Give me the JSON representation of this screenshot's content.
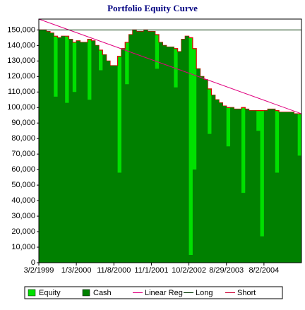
{
  "chart_data": {
    "type": "area",
    "title": "Portfolio Equity Curve",
    "categories": [
      "3/2/1999",
      null,
      null,
      null,
      null,
      null,
      null,
      null,
      null,
      null,
      "1/3/2000",
      null,
      null,
      null,
      null,
      null,
      null,
      null,
      null,
      null,
      "11/8/2000",
      null,
      null,
      null,
      null,
      null,
      null,
      null,
      null,
      null,
      "11/1/2001",
      null,
      null,
      null,
      null,
      null,
      null,
      null,
      null,
      null,
      "10/2/2002",
      null,
      null,
      null,
      null,
      null,
      null,
      null,
      null,
      null,
      "8/29/2003",
      null,
      null,
      null,
      null,
      null,
      null,
      null,
      null,
      null,
      "8/2/2004",
      null,
      null,
      null,
      null,
      null,
      null,
      null,
      null,
      null
    ],
    "series": [
      {
        "name": "Equity",
        "color": "#00e000",
        "edge_color": "#e00000",
        "values": [
          150000,
          150000,
          149000,
          148000,
          146000,
          145000,
          146000,
          146000,
          144000,
          142000,
          143000,
          142000,
          142000,
          144000,
          143000,
          140000,
          137000,
          134000,
          130000,
          127000,
          127000,
          133000,
          138000,
          142000,
          147000,
          150000,
          149000,
          149000,
          150000,
          149000,
          149000,
          147000,
          142000,
          140000,
          139000,
          139000,
          138000,
          136000,
          144000,
          146000,
          145000,
          138000,
          125000,
          120000,
          118000,
          112000,
          108000,
          105000,
          103000,
          101000,
          100000,
          100000,
          99000,
          99000,
          100000,
          99000,
          98000,
          98000,
          98000,
          98000,
          98000,
          99000,
          99000,
          98000,
          97000,
          97000,
          97000,
          97000,
          96000,
          96000
        ]
      },
      {
        "name": "Cash",
        "color": "#008000",
        "values": [
          150000,
          150000,
          149000,
          148000,
          107000,
          145000,
          146000,
          103000,
          144000,
          110000,
          143000,
          142000,
          142000,
          105000,
          143000,
          140000,
          124000,
          134000,
          130000,
          127000,
          127000,
          58000,
          138000,
          115000,
          147000,
          150000,
          149000,
          149000,
          150000,
          149000,
          149000,
          125000,
          142000,
          140000,
          139000,
          139000,
          113000,
          136000,
          144000,
          146000,
          5000,
          60000,
          125000,
          120000,
          118000,
          83000,
          108000,
          105000,
          103000,
          101000,
          75000,
          100000,
          99000,
          99000,
          45000,
          99000,
          98000,
          98000,
          85000,
          17000,
          98000,
          99000,
          99000,
          58000,
          97000,
          97000,
          97000,
          97000,
          96000,
          69000
        ]
      },
      {
        "name": "Linear Reg",
        "color": "#e0007f",
        "type": "line",
        "x": [
          0,
          69
        ],
        "values": [
          157000,
          96000
        ]
      },
      {
        "name": "Long",
        "color": "#003300",
        "type": "line",
        "x": [
          0,
          69
        ],
        "values": [
          150000,
          150000
        ]
      },
      {
        "name": "Short",
        "color": "#cc0033",
        "type": "line",
        "x": [],
        "values": []
      }
    ],
    "ylim": [
      0,
      157000
    ],
    "yticks": [
      0,
      {
        "value": 10000,
        "label": "10,000"
      },
      {
        "value": 20000,
        "label": "20,000"
      },
      {
        "value": 30000,
        "label": "30,000"
      },
      {
        "value": 40000,
        "label": "40,000"
      },
      {
        "value": 50000,
        "label": "50,000"
      },
      {
        "value": 60000,
        "label": "60,000"
      },
      {
        "value": 70000,
        "label": "70,000"
      },
      {
        "value": 80000,
        "label": "80,000"
      },
      {
        "value": 90000,
        "label": "90,000"
      },
      {
        "value": 100000,
        "label": "100,000"
      },
      {
        "value": 110000,
        "label": "110,000"
      },
      {
        "value": 120000,
        "label": "120,000"
      },
      {
        "value": 130000,
        "label": "130,000"
      },
      {
        "value": 140000,
        "label": "140,000"
      },
      {
        "value": 150000,
        "label": "150,000"
      }
    ]
  }
}
